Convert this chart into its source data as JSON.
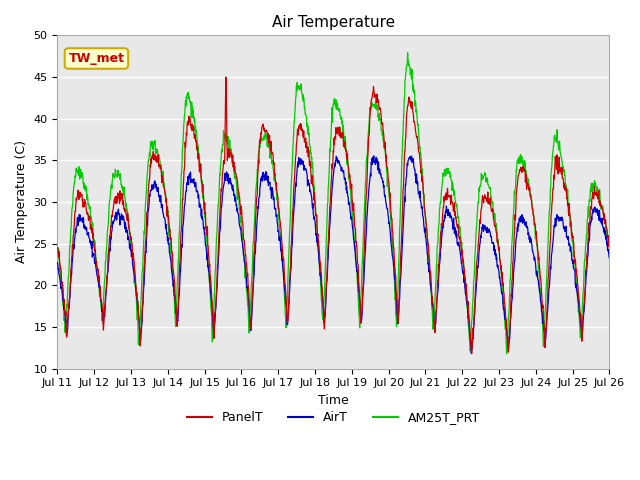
{
  "title": "Air Temperature",
  "xlabel": "Time",
  "ylabel": "Air Temperature (C)",
  "ylim": [
    10,
    50
  ],
  "yticks": [
    10,
    15,
    20,
    25,
    30,
    35,
    40,
    45,
    50
  ],
  "xtick_labels": [
    "Jul 11",
    "Jul 12",
    "Jul 13",
    "Jul 14",
    "Jul 15",
    "Jul 16",
    "Jul 17",
    "Jul 18",
    "Jul 19",
    "Jul 20",
    "Jul 21",
    "Jul 22",
    "Jul 23",
    "Jul 24",
    "Jul 25",
    "Jul 26"
  ],
  "bg_color": "#e8e8e8",
  "legend_entries": [
    "PanelT",
    "AirT",
    "AM25T_PRT"
  ],
  "line_colors": [
    "#cc0000",
    "#0000cc",
    "#00cc00"
  ],
  "annotation_text": "TW_met",
  "annotation_color": "#cc0000",
  "annotation_bg": "#ffffcc",
  "annotation_border": "#ccaa00",
  "title_fontsize": 11,
  "label_fontsize": 9,
  "tick_fontsize": 8
}
